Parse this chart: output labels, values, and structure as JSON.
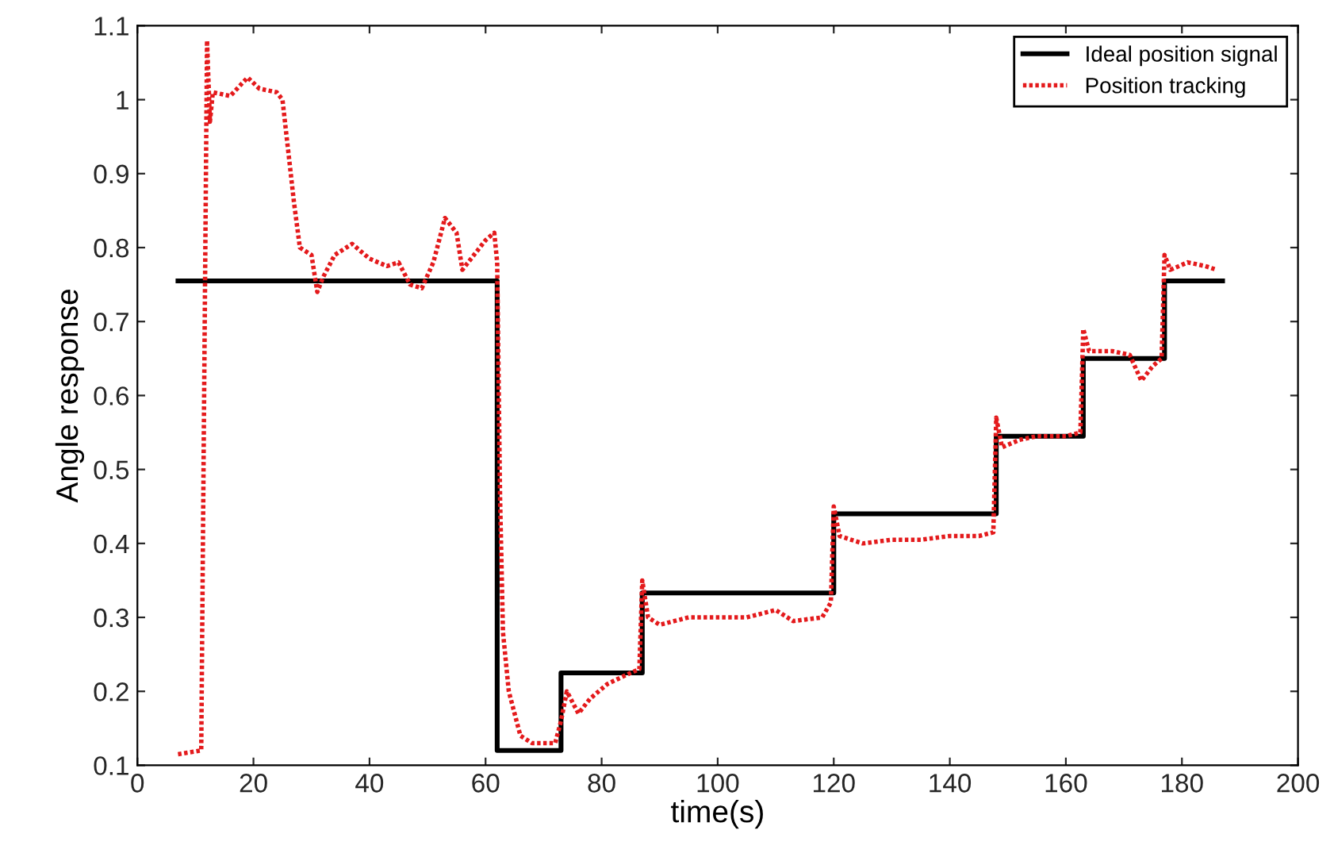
{
  "chart_data": {
    "type": "line",
    "xlabel": "time(s)",
    "ylabel": "Angle response",
    "xlim": [
      0,
      200
    ],
    "xticks": [
      0,
      20,
      40,
      60,
      80,
      100,
      120,
      140,
      160,
      180,
      200
    ],
    "ylim": [
      0.1,
      1.1
    ],
    "yticks": [
      0.1,
      0.2,
      0.3,
      0.4,
      0.5,
      0.6,
      0.7,
      0.8,
      0.9,
      1,
      1.1
    ],
    "grid": false,
    "legend": "top right",
    "series": [
      {
        "name": "Ideal position signal",
        "color": "#000000",
        "type": "step",
        "line_style": "solid",
        "x": [
          7,
          62,
          73,
          87,
          120,
          148,
          163,
          177,
          187
        ],
        "values": [
          0.755,
          0.12,
          0.225,
          0.333,
          0.44,
          0.545,
          0.65,
          0.755,
          0.755
        ]
      },
      {
        "name": "Position tracking",
        "color": "#e41a1c",
        "line_style": "dotted",
        "x": [
          7,
          11,
          12,
          12.5,
          13,
          16,
          19,
          21,
          24,
          25,
          26,
          27,
          28,
          30,
          31,
          32,
          34,
          37,
          40,
          43,
          45,
          47,
          49,
          51,
          53,
          55,
          56,
          58,
          60,
          61.5,
          62,
          62.5,
          63,
          64,
          66,
          68,
          72,
          73,
          74,
          76,
          78,
          81,
          85,
          86.5,
          87,
          88,
          90,
          95,
          100,
          105,
          110,
          113,
          118,
          119.5,
          120,
          121,
          125,
          130,
          135,
          140,
          145,
          147.5,
          148,
          149,
          152,
          155,
          160,
          162.5,
          163,
          164,
          168,
          171,
          173,
          175,
          176.5,
          177,
          178,
          181,
          184,
          186
        ],
        "values": [
          0.115,
          0.12,
          1.08,
          0.97,
          1.01,
          1.005,
          1.03,
          1.015,
          1.01,
          1.0,
          0.93,
          0.86,
          0.8,
          0.79,
          0.74,
          0.76,
          0.79,
          0.805,
          0.785,
          0.775,
          0.78,
          0.75,
          0.745,
          0.78,
          0.84,
          0.82,
          0.77,
          0.79,
          0.81,
          0.82,
          0.78,
          0.46,
          0.28,
          0.2,
          0.14,
          0.13,
          0.13,
          0.16,
          0.2,
          0.17,
          0.19,
          0.21,
          0.225,
          0.23,
          0.35,
          0.3,
          0.29,
          0.3,
          0.3,
          0.3,
          0.31,
          0.295,
          0.3,
          0.32,
          0.45,
          0.41,
          0.4,
          0.405,
          0.405,
          0.41,
          0.41,
          0.415,
          0.57,
          0.53,
          0.54,
          0.545,
          0.545,
          0.55,
          0.69,
          0.66,
          0.66,
          0.655,
          0.62,
          0.64,
          0.65,
          0.79,
          0.77,
          0.78,
          0.775,
          0.77
        ]
      }
    ]
  }
}
